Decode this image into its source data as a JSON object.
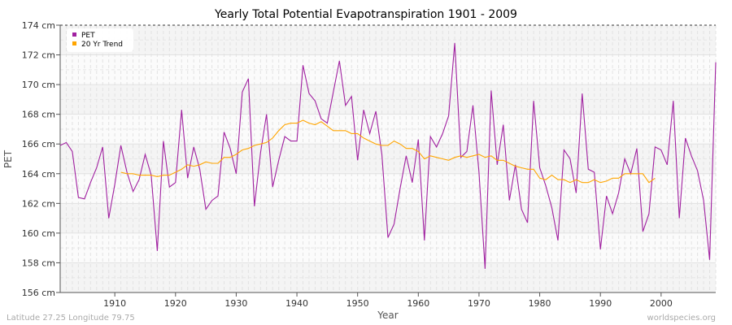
{
  "chart_data": {
    "type": "line",
    "title": "Yearly Total Potential Evapotranspiration 1901 - 2009",
    "xlabel": "Year",
    "ylabel": "PET",
    "xlim": [
      1901,
      2009
    ],
    "ylim": [
      156,
      174
    ],
    "x_ticks": [
      1910,
      1920,
      1930,
      1940,
      1950,
      1960,
      1970,
      1980,
      1990,
      2000
    ],
    "y_ticks": [
      "156 cm",
      "158 cm",
      "160 cm",
      "162 cm",
      "164 cm",
      "166 cm",
      "168 cm",
      "170 cm",
      "172 cm",
      "174 cm"
    ],
    "grid": true,
    "legend_position": "top-left",
    "series": [
      {
        "name": "PET",
        "color": "#a020a0",
        "x_start": 1901,
        "values": [
          165.9,
          166.1,
          165.5,
          162.4,
          162.3,
          163.4,
          164.4,
          165.8,
          161.0,
          163.3,
          165.9,
          164.1,
          162.8,
          163.6,
          165.3,
          163.9,
          158.8,
          166.2,
          163.1,
          163.4,
          168.3,
          163.7,
          165.8,
          164.3,
          161.6,
          162.2,
          162.5,
          166.8,
          165.7,
          164.0,
          169.5,
          170.4,
          161.8,
          165.4,
          168.0,
          163.1,
          164.9,
          166.5,
          166.2,
          166.2,
          171.3,
          169.4,
          168.9,
          167.7,
          167.4,
          169.5,
          171.6,
          168.6,
          169.2,
          164.9,
          168.3,
          166.7,
          168.2,
          165.3,
          159.7,
          160.6,
          163.0,
          165.2,
          163.4,
          166.3,
          159.5,
          166.5,
          165.8,
          166.7,
          167.9,
          172.8,
          165.1,
          165.5,
          168.6,
          164.1,
          157.6,
          169.6,
          164.6,
          167.3,
          162.2,
          164.6,
          161.6,
          160.7,
          168.9,
          164.4,
          163.2,
          161.7,
          159.5,
          165.6,
          165.0,
          162.7,
          169.4,
          164.3,
          164.1,
          158.9,
          162.5,
          161.3,
          162.7,
          165.0,
          164.0,
          165.7,
          160.1,
          161.3,
          165.8,
          165.6,
          164.6,
          168.9,
          161.0,
          166.4,
          165.2,
          164.2,
          162.2,
          158.2,
          171.5
        ]
      },
      {
        "name": "20 Yr Trend",
        "color": "#ffa500",
        "x_start": 1911,
        "values": [
          164.1,
          164.0,
          164.0,
          163.9,
          163.9,
          163.9,
          163.8,
          163.9,
          163.9,
          164.1,
          164.3,
          164.6,
          164.5,
          164.6,
          164.8,
          164.7,
          164.7,
          165.1,
          165.1,
          165.3,
          165.6,
          165.7,
          165.9,
          166.0,
          166.1,
          166.4,
          166.9,
          167.3,
          167.4,
          167.4,
          167.6,
          167.4,
          167.3,
          167.5,
          167.2,
          166.9,
          166.9,
          166.9,
          166.7,
          166.7,
          166.4,
          166.2,
          166.0,
          165.9,
          165.9,
          166.2,
          166.0,
          165.7,
          165.7,
          165.5,
          165.0,
          165.2,
          165.1,
          165.0,
          164.9,
          165.1,
          165.2,
          165.1,
          165.2,
          165.3,
          165.1,
          165.2,
          164.9,
          164.9,
          164.7,
          164.5,
          164.4,
          164.3,
          164.3,
          163.7,
          163.6,
          163.9,
          163.6,
          163.6,
          163.4,
          163.6,
          163.4,
          163.4,
          163.6,
          163.4,
          163.5,
          163.7,
          163.7,
          164.0,
          164.0,
          164.0,
          164.0,
          163.4,
          163.7
        ]
      }
    ]
  },
  "footer": {
    "left": "Latitude 27.25 Longitude 79.75",
    "right": "worldspecies.org"
  }
}
